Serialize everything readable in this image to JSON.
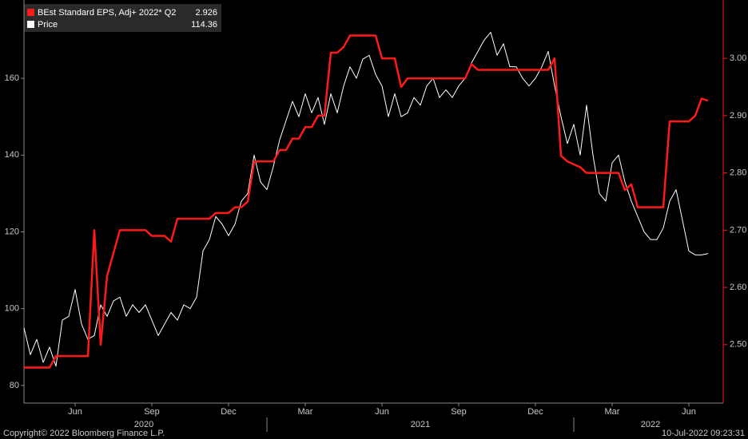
{
  "chart_data": {
    "type": "line",
    "categories": [
      null,
      null,
      null,
      null,
      null,
      null,
      null,
      null,
      "Jun",
      null,
      null,
      null,
      null,
      null,
      null,
      null,
      null,
      null,
      null,
      null,
      "Sep",
      null,
      null,
      null,
      null,
      null,
      null,
      null,
      null,
      null,
      null,
      null,
      "Dec",
      null,
      null,
      null,
      null,
      null,
      null,
      null,
      null,
      null,
      null,
      null,
      "Mar",
      null,
      null,
      null,
      null,
      null,
      null,
      null,
      null,
      null,
      null,
      null,
      "Jun",
      null,
      null,
      null,
      null,
      null,
      null,
      null,
      null,
      null,
      null,
      null,
      "Sep",
      null,
      null,
      null,
      null,
      null,
      null,
      null,
      null,
      null,
      null,
      null,
      "Dec",
      null,
      null,
      null,
      null,
      null,
      null,
      null,
      null,
      null,
      null,
      null,
      "Mar",
      null,
      null,
      null,
      null,
      null,
      null,
      null,
      null,
      null,
      null,
      null,
      "Jun",
      null,
      null,
      null
    ],
    "year_labels": [
      "2020",
      "2021",
      "2022"
    ],
    "series": [
      {
        "name": "BEst Standard EPS, Adj+ 2022* Q2",
        "last_value": 2.926,
        "color": "#ff1a1a",
        "axis": "y2",
        "values": [
          2.46,
          2.46,
          2.46,
          2.46,
          2.46,
          2.48,
          2.48,
          2.48,
          2.48,
          2.48,
          2.48,
          2.7,
          2.5,
          2.62,
          2.66,
          2.7,
          2.7,
          2.7,
          2.7,
          2.7,
          2.69,
          2.69,
          2.69,
          2.68,
          2.72,
          2.72,
          2.72,
          2.72,
          2.72,
          2.72,
          2.73,
          2.73,
          2.73,
          2.74,
          2.74,
          2.75,
          2.82,
          2.82,
          2.82,
          2.82,
          2.84,
          2.84,
          2.86,
          2.86,
          2.88,
          2.88,
          2.9,
          2.9,
          3.01,
          3.01,
          3.02,
          3.04,
          3.04,
          3.04,
          3.04,
          3.04,
          3.0,
          3.0,
          3.0,
          2.95,
          2.965,
          2.965,
          2.965,
          2.965,
          2.965,
          2.965,
          2.965,
          2.965,
          2.965,
          2.965,
          2.99,
          2.98,
          2.98,
          2.98,
          2.98,
          2.98,
          2.98,
          2.98,
          2.98,
          2.98,
          2.98,
          2.98,
          2.98,
          3.0,
          2.83,
          2.82,
          2.815,
          2.81,
          2.8,
          2.8,
          2.8,
          2.8,
          2.8,
          2.8,
          2.77,
          2.78,
          2.74,
          2.74,
          2.74,
          2.74,
          2.74,
          2.89,
          2.89,
          2.89,
          2.89,
          2.9,
          2.93,
          2.926
        ]
      },
      {
        "name": "Price",
        "last_value": 114.36,
        "color": "#ffffff",
        "values": [
          95,
          88,
          92,
          86,
          90,
          85,
          97,
          98,
          105,
          96,
          92,
          93,
          101,
          98,
          102,
          103,
          98,
          101,
          99,
          101,
          97,
          93,
          96,
          99,
          97,
          101,
          100,
          103,
          115,
          118,
          124,
          122,
          119,
          122,
          128,
          130,
          140,
          133,
          131,
          137,
          144,
          149,
          154,
          150,
          156,
          151,
          155,
          148,
          156,
          151,
          158,
          163,
          160,
          165,
          166,
          161,
          158,
          150,
          156,
          150,
          151,
          155,
          153,
          158,
          160,
          155,
          157,
          155,
          158,
          160,
          164,
          167,
          170,
          172,
          166,
          169,
          163,
          163,
          160,
          158,
          160,
          163,
          167,
          158,
          150,
          143,
          148,
          140,
          153,
          140,
          130,
          128,
          138,
          140,
          133,
          128,
          124,
          120,
          118,
          118,
          121,
          128,
          131,
          123,
          115,
          114,
          114,
          114.36
        ]
      }
    ],
    "ylim": [
      75.4,
      180.4
    ],
    "yticks": [
      80,
      100,
      120,
      140,
      160
    ],
    "y2lim": [
      2.398,
      3.102
    ],
    "y2ticks": [
      {
        "value": 2.5,
        "label": "2.50"
      },
      {
        "value": 2.6,
        "label": "2.60"
      },
      {
        "value": 2.7,
        "label": "2.70"
      },
      {
        "value": 2.8,
        "label": "2.80"
      },
      {
        "value": 2.9,
        "label": "2.90"
      },
      {
        "value": 3.0,
        "label": "3.00"
      }
    ],
    "y2_axis_color": "#ff1a1a"
  },
  "footer": {
    "copyright": "Copyright© 2022 Bloomberg Finance L.P.",
    "timestamp": "10-Jul-2022 09:23:31"
  }
}
